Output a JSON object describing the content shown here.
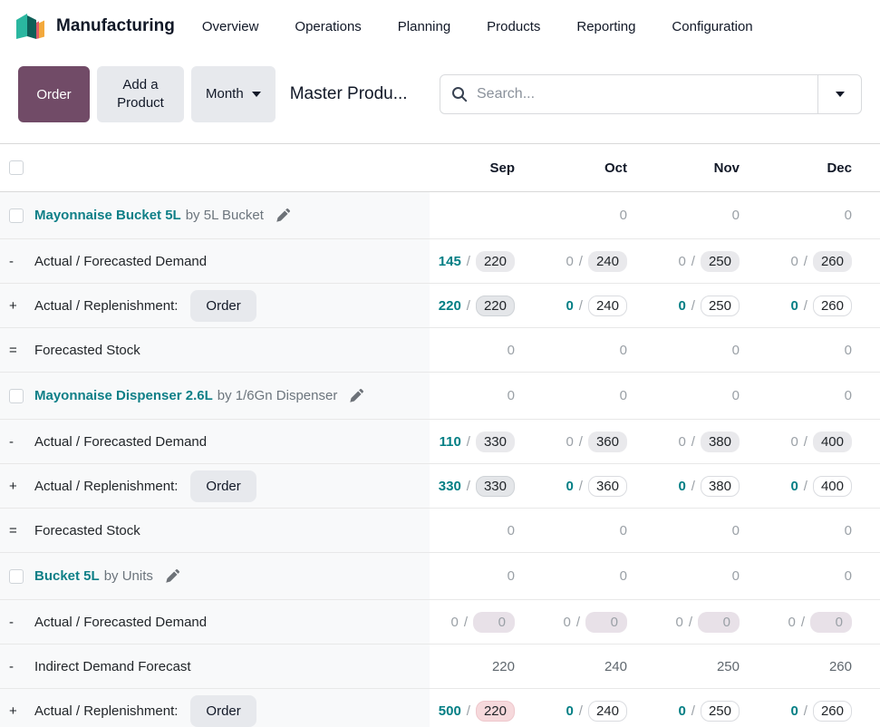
{
  "nav": {
    "app_name": "Manufacturing",
    "menu_items": [
      "Overview",
      "Operations",
      "Planning",
      "Products",
      "Reporting",
      "Configuration"
    ]
  },
  "toolbar": {
    "order_button": "Order",
    "add_product_button": "Add a Product",
    "range_button": "Month",
    "page_title": "Master Produ...",
    "search_placeholder": "Search..."
  },
  "colors": {
    "accent_teal": "#017e84",
    "primary_purple": "#714B67",
    "pill_gray": "#e9e9ec",
    "pill_muted": "#e8e1e8",
    "input_red": "#f6d9dc"
  },
  "table": {
    "columns": [
      "Sep",
      "Oct",
      "Nov",
      "Dec"
    ],
    "rows": [
      {
        "type": "product",
        "name": "Mayonnaise Bucket 5L",
        "by": "by 5L Bucket",
        "cells": [
          {},
          {
            "value": "0",
            "style": "plain"
          },
          {
            "value": "0",
            "style": "plain"
          },
          {
            "value": "0",
            "style": "plain"
          }
        ]
      },
      {
        "type": "line",
        "prefix": "-",
        "label": "Actual / Forecasted Demand",
        "cells": [
          {
            "actual": "145",
            "astyle": "teal",
            "value": "220",
            "style": "pill-gray"
          },
          {
            "actual": "0",
            "astyle": "muted",
            "value": "240",
            "style": "pill-gray"
          },
          {
            "actual": "0",
            "astyle": "muted",
            "value": "250",
            "style": "pill-gray"
          },
          {
            "actual": "0",
            "astyle": "muted",
            "value": "260",
            "style": "pill-gray"
          }
        ]
      },
      {
        "type": "line",
        "prefix": "+",
        "label": "Actual / Replenishment:",
        "button": "Order",
        "cells": [
          {
            "actual": "220",
            "astyle": "teal",
            "value": "220",
            "style": "input-gray"
          },
          {
            "actual": "0",
            "astyle": "teal",
            "value": "240",
            "style": "input"
          },
          {
            "actual": "0",
            "astyle": "teal",
            "value": "250",
            "style": "input"
          },
          {
            "actual": "0",
            "astyle": "teal",
            "value": "260",
            "style": "input"
          }
        ]
      },
      {
        "type": "line",
        "prefix": "=",
        "label": "Forecasted Stock",
        "cells": [
          {
            "value": "0",
            "style": "plain"
          },
          {
            "value": "0",
            "style": "plain"
          },
          {
            "value": "0",
            "style": "plain"
          },
          {
            "value": "0",
            "style": "plain"
          }
        ]
      },
      {
        "type": "product",
        "name": "Mayonnaise Dispenser 2.6L",
        "by": "by 1/6Gn Dispenser",
        "cells": [
          {
            "value": "0",
            "style": "plain"
          },
          {
            "value": "0",
            "style": "plain"
          },
          {
            "value": "0",
            "style": "plain"
          },
          {
            "value": "0",
            "style": "plain"
          }
        ]
      },
      {
        "type": "line",
        "prefix": "-",
        "label": "Actual / Forecasted Demand",
        "cells": [
          {
            "actual": "110",
            "astyle": "teal",
            "value": "330",
            "style": "pill-gray"
          },
          {
            "actual": "0",
            "astyle": "muted",
            "value": "360",
            "style": "pill-gray"
          },
          {
            "actual": "0",
            "astyle": "muted",
            "value": "380",
            "style": "pill-gray"
          },
          {
            "actual": "0",
            "astyle": "muted",
            "value": "400",
            "style": "pill-gray"
          }
        ]
      },
      {
        "type": "line",
        "prefix": "+",
        "label": "Actual / Replenishment:",
        "button": "Order",
        "cells": [
          {
            "actual": "330",
            "astyle": "teal",
            "value": "330",
            "style": "input-gray"
          },
          {
            "actual": "0",
            "astyle": "teal",
            "value": "360",
            "style": "input"
          },
          {
            "actual": "0",
            "astyle": "teal",
            "value": "380",
            "style": "input"
          },
          {
            "actual": "0",
            "astyle": "teal",
            "value": "400",
            "style": "input"
          }
        ]
      },
      {
        "type": "line",
        "prefix": "=",
        "label": "Forecasted Stock",
        "cells": [
          {
            "value": "0",
            "style": "plain"
          },
          {
            "value": "0",
            "style": "plain"
          },
          {
            "value": "0",
            "style": "plain"
          },
          {
            "value": "0",
            "style": "plain"
          }
        ]
      },
      {
        "type": "product",
        "name": "Bucket 5L",
        "by": "by Units",
        "cells": [
          {
            "value": "0",
            "style": "plain"
          },
          {
            "value": "0",
            "style": "plain"
          },
          {
            "value": "0",
            "style": "plain"
          },
          {
            "value": "0",
            "style": "plain"
          }
        ]
      },
      {
        "type": "line",
        "prefix": "-",
        "label": "Actual / Forecasted Demand",
        "cells": [
          {
            "actual": "0",
            "astyle": "muted",
            "value": "0",
            "style": "pill-muted"
          },
          {
            "actual": "0",
            "astyle": "muted",
            "value": "0",
            "style": "pill-muted"
          },
          {
            "actual": "0",
            "astyle": "muted",
            "value": "0",
            "style": "pill-muted"
          },
          {
            "actual": "0",
            "astyle": "muted",
            "value": "0",
            "style": "pill-muted"
          }
        ]
      },
      {
        "type": "line",
        "prefix": "-",
        "label": "Indirect Demand Forecast",
        "cells": [
          {
            "value": "220",
            "style": "plain-dark"
          },
          {
            "value": "240",
            "style": "plain-dark"
          },
          {
            "value": "250",
            "style": "plain-dark"
          },
          {
            "value": "260",
            "style": "plain-dark"
          }
        ]
      },
      {
        "type": "line",
        "prefix": "+",
        "label": "Actual / Replenishment:",
        "button": "Order",
        "cells": [
          {
            "actual": "500",
            "astyle": "teal",
            "value": "220",
            "style": "input-red"
          },
          {
            "actual": "0",
            "astyle": "teal",
            "value": "240",
            "style": "input"
          },
          {
            "actual": "0",
            "astyle": "teal",
            "value": "250",
            "style": "input"
          },
          {
            "actual": "0",
            "astyle": "teal",
            "value": "260",
            "style": "input"
          }
        ]
      }
    ]
  }
}
